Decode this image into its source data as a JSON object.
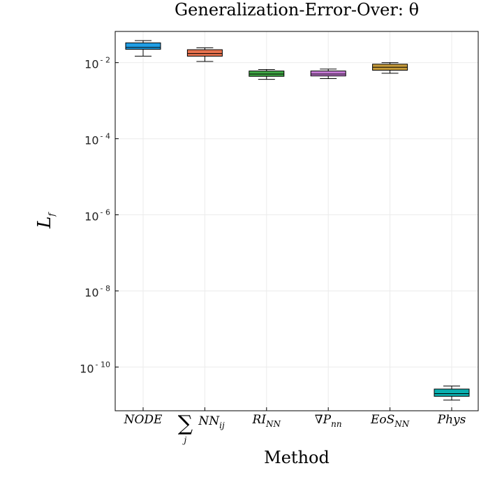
{
  "chart_data": {
    "type": "box",
    "title": "Generalization-Error-Over: θ",
    "xlabel": "Method",
    "ylabel": "L",
    "ylabel_sub": "f",
    "yscale": "log10",
    "ylim_log10": [
      -11.15,
      -1.18
    ],
    "yticks": [
      {
        "base": "10",
        "exp": "- 2",
        "value": -2
      },
      {
        "base": "10",
        "exp": "- 4",
        "value": -4
      },
      {
        "base": "10",
        "exp": "- 6",
        "value": -6
      },
      {
        "base": "10",
        "exp": "- 8",
        "value": -8
      },
      {
        "base": "10",
        "exp": "- 10",
        "value": -10
      }
    ],
    "grid": true,
    "legend": "none",
    "categories": [
      {
        "label": "NODE",
        "sub": "",
        "prefix": ""
      },
      {
        "label": "NN",
        "sub": "ij",
        "prefix": "∑",
        "prefix_sub": "j"
      },
      {
        "label": "RI",
        "sub": "NN",
        "prefix": ""
      },
      {
        "label": "∇P",
        "sub": "nn",
        "prefix": ""
      },
      {
        "label": "EoS",
        "sub": "NN",
        "prefix": ""
      },
      {
        "label": "Phys",
        "sub": "",
        "prefix": ""
      }
    ],
    "series": [
      {
        "whisker_low": -1.83,
        "q1": -1.65,
        "median": -1.6,
        "q3": -1.48,
        "whisker_high": -1.42,
        "color": "#1f9de4"
      },
      {
        "whisker_low": -1.97,
        "q1": -1.83,
        "median": -1.76,
        "q3": -1.66,
        "whisker_high": -1.61,
        "color": "#e8734f"
      },
      {
        "whisker_low": -2.44,
        "q1": -2.36,
        "median": -2.3,
        "q3": -2.22,
        "whisker_high": -2.18,
        "color": "#3fa845"
      },
      {
        "whisker_low": -2.42,
        "q1": -2.35,
        "median": -2.3,
        "q3": -2.22,
        "whisker_high": -2.17,
        "color": "#c67ad6"
      },
      {
        "whisker_low": -2.28,
        "q1": -2.2,
        "median": -2.12,
        "q3": -2.04,
        "whisker_high": -2.0,
        "color": "#c59a3a"
      },
      {
        "whisker_low": -10.87,
        "q1": -10.77,
        "median": -10.7,
        "q3": -10.58,
        "whisker_high": -10.5,
        "color": "#0aafaf"
      }
    ]
  }
}
